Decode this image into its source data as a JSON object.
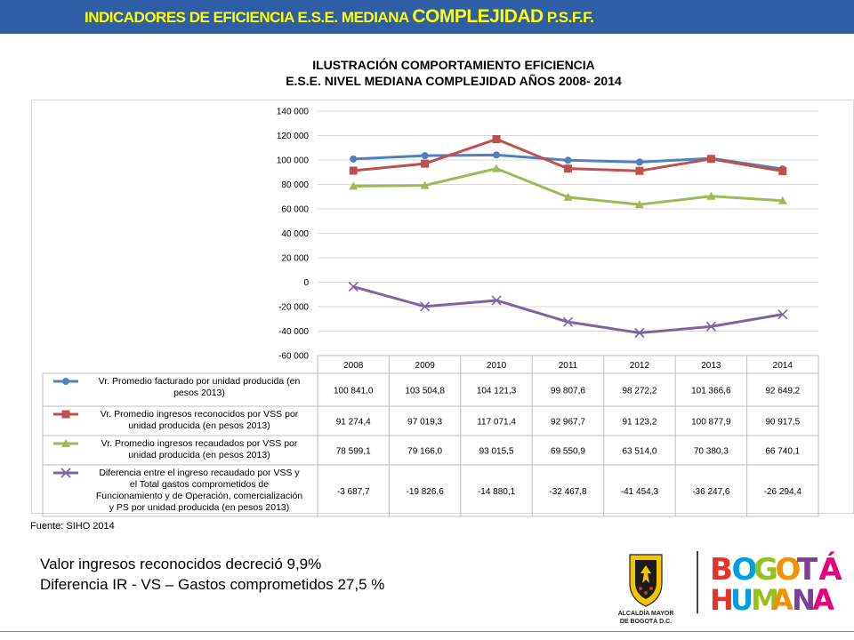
{
  "header": {
    "title_a": "INDICADORES DE EFICIENCIA E.S.E.  MEDIANA ",
    "title_b": "COMPLEJIDAD",
    "title_c": "  P.S.F.F."
  },
  "chart_data": {
    "type": "line",
    "title_line1": "ILUSTRACIÓN COMPORTAMIENTO EFICIENCIA",
    "title_line2": "E.S.E. NIVEL MEDIANA  COMPLEJIDAD AÑOS 2008- 2014",
    "categories": [
      "2008",
      "2009",
      "2010",
      "2011",
      "2012",
      "2013",
      "2014"
    ],
    "ylim": [
      -60000,
      140000
    ],
    "yticks": [
      140000,
      120000,
      100000,
      80000,
      60000,
      40000,
      20000,
      0,
      -20000,
      -40000,
      -60000
    ],
    "ytick_labels": [
      "140 000",
      "120 000",
      "100 000",
      "80 000",
      "60 000",
      "40 000",
      "20 000",
      "0",
      "-20 000",
      "-40 000",
      "-60 000"
    ],
    "grid": true,
    "legend": "data-table",
    "series": [
      {
        "name": "Vr. Promedio facturado por unidad producida (en pesos 2013)",
        "name_lines": [
          "Vr. Promedio facturado por unidad producida (en",
          "pesos 2013)"
        ],
        "color": "#4f81bd",
        "marker": "circle",
        "values": [
          100841.0,
          103504.8,
          104121.3,
          99807.6,
          98272.2,
          101366.6,
          92649.2
        ],
        "labels": [
          "100 841,0",
          "103 504,8",
          "104 121,3",
          "99 807,6",
          "98 272,2",
          "101 366,6",
          "92 649,2"
        ]
      },
      {
        "name": "Vr. Promedio ingresos reconocidos por VSS por unidad producida (en pesos 2013)",
        "name_lines": [
          "Vr. Promedio ingresos reconocidos por VSS por",
          "unidad producida (en pesos 2013)"
        ],
        "color": "#c0504d",
        "marker": "square",
        "values": [
          91274.4,
          97019.3,
          117071.4,
          92967.7,
          91123.2,
          100877.9,
          90917.5
        ],
        "labels": [
          "91 274,4",
          "97 019,3",
          "117 071,4",
          "92 967,7",
          "91 123,2",
          "100 877,9",
          "90 917,5"
        ]
      },
      {
        "name": "Vr. Promedio ingresos recaudados por VSS por unidad producida (en pesos 2013)",
        "name_lines": [
          "Vr. Promedio ingresos recaudados por VSS por",
          "unidad producida (en pesos 2013)"
        ],
        "color": "#9bbb59",
        "marker": "triangle",
        "values": [
          78599.1,
          79166.0,
          93015.5,
          69550.9,
          63514.0,
          70380.3,
          66740.1
        ],
        "labels": [
          "78 599,1",
          "79 166,0",
          "93 015,5",
          "69 550,9",
          "63 514,0",
          "70 380,3",
          "66 740,1"
        ]
      },
      {
        "name": "Diferencia entre el ingreso recaudado por VSS y el Total gastos comprometidos de Funcionamiento y de Operación, comercialización y PS por unidad producida (en pesos 2013)",
        "name_lines": [
          "Diferencia entre el ingreso recaudado por VSS y",
          "el Total gastos comprometidos de",
          "Funcionamiento y de Operación, comercialización",
          "y PS por unidad producida (en pesos 2013)"
        ],
        "color": "#8064a2",
        "marker": "x",
        "values": [
          -3687.7,
          -19826.6,
          -14880.1,
          -32467.8,
          -41454.3,
          -36247.6,
          -26294.4
        ],
        "labels": [
          "-3 687,7",
          "-19 826,6",
          "-14 880,1",
          "-32 467,8",
          "-41 454,3",
          "-36 247,6",
          "-26 294,4"
        ]
      }
    ]
  },
  "source": "Fuente: SIHO 2014",
  "notes": {
    "line1": "Valor  ingresos reconocidos decreció 9,9%",
    "line2": "Diferencia IR - VS – Gastos comprometidos 27,5 %"
  },
  "logo": {
    "alcaldia_line1": "ALCALDÍA MAYOR",
    "alcaldia_line2": "DE BOGOTÁ D.C.",
    "brand_line1": "BOGOTÁ",
    "brand_line2": "HUMANA",
    "colors": [
      "#e6332a",
      "#009ee3",
      "#95c11f",
      "#f39200",
      "#7b3f98",
      "#e5007e"
    ]
  }
}
